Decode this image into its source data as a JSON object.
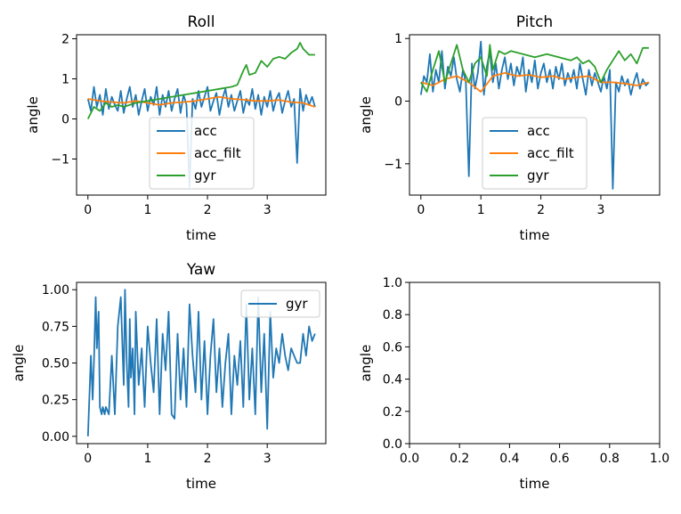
{
  "colors": {
    "acc": "#1f77b4",
    "acc_filt": "#ff7f0e",
    "gyr": "#2ca02c",
    "yaw_gyr": "#1f77b4"
  },
  "chart_data": [
    {
      "type": "line",
      "title": "Roll",
      "xlabel": "time",
      "ylabel": "angle",
      "xlim": [
        -0.19,
        3.98
      ],
      "ylim": [
        -1.9,
        2.1
      ],
      "xticks": [
        0,
        1,
        2,
        3
      ],
      "yticks": [
        -1,
        0,
        1,
        2
      ],
      "xtick_labels": [
        "0",
        "1",
        "2",
        "3"
      ],
      "ytick_labels": [
        "−1",
        "0",
        "1",
        "2"
      ],
      "legend": {
        "position": "lower center",
        "entries": [
          "acc",
          "acc_filt",
          "gyr"
        ]
      },
      "series": [
        {
          "name": "acc",
          "color": "acc",
          "x": [
            0.0,
            0.05,
            0.1,
            0.15,
            0.2,
            0.25,
            0.3,
            0.35,
            0.4,
            0.45,
            0.5,
            0.55,
            0.6,
            0.65,
            0.7,
            0.75,
            0.8,
            0.85,
            0.9,
            0.95,
            1.0,
            1.05,
            1.1,
            1.15,
            1.2,
            1.25,
            1.3,
            1.35,
            1.4,
            1.45,
            1.5,
            1.55,
            1.6,
            1.65,
            1.7,
            1.75,
            1.8,
            1.85,
            1.9,
            1.95,
            2.0,
            2.05,
            2.1,
            2.15,
            2.2,
            2.25,
            2.3,
            2.35,
            2.4,
            2.45,
            2.5,
            2.55,
            2.6,
            2.65,
            2.7,
            2.75,
            2.8,
            2.85,
            2.9,
            2.95,
            3.0,
            3.05,
            3.1,
            3.15,
            3.2,
            3.25,
            3.3,
            3.35,
            3.4,
            3.45,
            3.5,
            3.55,
            3.6,
            3.65,
            3.7,
            3.75,
            3.8
          ],
          "y": [
            0.5,
            0.2,
            0.8,
            0.3,
            0.6,
            0.1,
            0.75,
            0.25,
            0.55,
            0.35,
            0.2,
            0.7,
            0.15,
            0.5,
            0.8,
            0.3,
            0.6,
            0.1,
            0.45,
            0.75,
            0.2,
            0.55,
            0.35,
            0.8,
            0.1,
            0.6,
            0.3,
            0.7,
            0.2,
            0.5,
            0.75,
            0.15,
            0.6,
            0.35,
            -1.7,
            0.5,
            0.25,
            0.7,
            0.3,
            0.55,
            0.8,
            0.2,
            0.45,
            0.65,
            0.1,
            0.5,
            0.75,
            0.3,
            0.6,
            0.2,
            0.45,
            0.7,
            0.15,
            0.5,
            0.35,
            0.75,
            0.25,
            0.6,
            0.1,
            0.55,
            0.3,
            0.7,
            0.2,
            0.5,
            0.65,
            0.15,
            0.45,
            0.7,
            0.3,
            0.5,
            -1.1,
            0.75,
            0.2,
            0.6,
            0.35,
            0.55,
            0.3
          ]
        },
        {
          "name": "acc_filt",
          "color": "acc_filt",
          "x": [
            0.0,
            0.2,
            0.4,
            0.6,
            0.8,
            1.0,
            1.2,
            1.4,
            1.6,
            1.8,
            2.0,
            2.2,
            2.4,
            2.6,
            2.8,
            3.0,
            3.2,
            3.4,
            3.6,
            3.8
          ],
          "y": [
            0.5,
            0.45,
            0.42,
            0.4,
            0.45,
            0.4,
            0.35,
            0.4,
            0.42,
            0.45,
            0.5,
            0.55,
            0.5,
            0.48,
            0.45,
            0.45,
            0.47,
            0.42,
            0.4,
            0.3
          ]
        },
        {
          "name": "gyr",
          "color": "gyr",
          "x": [
            0.0,
            0.1,
            0.2,
            0.3,
            0.4,
            0.5,
            0.6,
            0.8,
            1.0,
            1.2,
            1.4,
            1.6,
            1.8,
            2.0,
            2.2,
            2.4,
            2.5,
            2.6,
            2.65,
            2.7,
            2.8,
            2.9,
            3.0,
            3.1,
            3.2,
            3.3,
            3.4,
            3.5,
            3.55,
            3.6,
            3.7,
            3.8
          ],
          "y": [
            0.0,
            0.3,
            0.2,
            0.4,
            0.3,
            0.35,
            0.3,
            0.4,
            0.45,
            0.5,
            0.55,
            0.6,
            0.65,
            0.7,
            0.75,
            0.8,
            0.85,
            1.2,
            1.35,
            1.1,
            1.15,
            1.45,
            1.3,
            1.5,
            1.55,
            1.5,
            1.65,
            1.75,
            1.9,
            1.75,
            1.6,
            1.6
          ]
        }
      ]
    },
    {
      "type": "line",
      "title": "Pitch",
      "xlabel": "time",
      "ylabel": "angle",
      "xlim": [
        -0.19,
        3.98
      ],
      "ylim": [
        -1.5,
        1.06
      ],
      "xticks": [
        0,
        1,
        2,
        3
      ],
      "yticks": [
        -1,
        0,
        1
      ],
      "xtick_labels": [
        "0",
        "1",
        "2",
        "3"
      ],
      "ytick_labels": [
        "−1",
        "0",
        "1"
      ],
      "legend": {
        "position": "lower right",
        "entries": [
          "acc",
          "acc_filt",
          "gyr"
        ]
      },
      "series": [
        {
          "name": "acc",
          "color": "acc",
          "x": [
            0.0,
            0.05,
            0.1,
            0.15,
            0.2,
            0.25,
            0.3,
            0.35,
            0.4,
            0.45,
            0.5,
            0.55,
            0.6,
            0.65,
            0.7,
            0.75,
            0.8,
            0.85,
            0.9,
            0.95,
            1.0,
            1.05,
            1.1,
            1.15,
            1.2,
            1.25,
            1.3,
            1.35,
            1.4,
            1.45,
            1.5,
            1.55,
            1.6,
            1.65,
            1.7,
            1.75,
            1.8,
            1.85,
            1.9,
            1.95,
            2.0,
            2.05,
            2.1,
            2.15,
            2.2,
            2.25,
            2.3,
            2.35,
            2.4,
            2.45,
            2.5,
            2.55,
            2.6,
            2.65,
            2.7,
            2.75,
            2.8,
            2.85,
            2.9,
            2.95,
            3.0,
            3.05,
            3.1,
            3.15,
            3.2,
            3.25,
            3.3,
            3.35,
            3.4,
            3.45,
            3.5,
            3.55,
            3.6,
            3.65,
            3.7,
            3.75,
            3.8
          ],
          "y": [
            0.1,
            0.4,
            0.3,
            0.75,
            0.15,
            0.5,
            0.3,
            0.8,
            0.2,
            0.55,
            0.4,
            0.7,
            0.35,
            0.15,
            0.5,
            0.3,
            -1.2,
            0.6,
            0.2,
            0.45,
            0.95,
            0.1,
            0.55,
            0.8,
            0.3,
            0.6,
            0.2,
            0.5,
            0.7,
            0.35,
            0.6,
            0.25,
            0.55,
            0.4,
            0.7,
            0.15,
            0.5,
            0.3,
            0.65,
            0.2,
            0.45,
            0.6,
            0.3,
            0.5,
            0.2,
            0.55,
            0.35,
            0.6,
            0.25,
            0.45,
            0.3,
            0.5,
            0.2,
            0.6,
            0.35,
            0.1,
            0.5,
            0.25,
            0.45,
            0.3,
            0.15,
            0.4,
            0.2,
            0.5,
            -1.4,
            0.3,
            0.15,
            0.4,
            0.25,
            0.35,
            0.1,
            0.3,
            0.45,
            0.2,
            0.35,
            0.25,
            0.3
          ]
        },
        {
          "name": "acc_filt",
          "color": "acc_filt",
          "x": [
            0.0,
            0.2,
            0.4,
            0.6,
            0.8,
            1.0,
            1.2,
            1.4,
            1.6,
            1.8,
            2.0,
            2.2,
            2.4,
            2.6,
            2.8,
            3.0,
            3.2,
            3.4,
            3.6,
            3.8
          ],
          "y": [
            0.3,
            0.25,
            0.35,
            0.4,
            0.3,
            0.15,
            0.4,
            0.45,
            0.4,
            0.42,
            0.38,
            0.4,
            0.35,
            0.38,
            0.4,
            0.3,
            0.3,
            0.28,
            0.25,
            0.3
          ]
        },
        {
          "name": "gyr",
          "color": "gyr",
          "x": [
            0.0,
            0.1,
            0.2,
            0.3,
            0.4,
            0.5,
            0.6,
            0.7,
            0.8,
            0.9,
            1.0,
            1.1,
            1.15,
            1.2,
            1.3,
            1.4,
            1.5,
            1.7,
            1.9,
            2.1,
            2.3,
            2.5,
            2.6,
            2.7,
            2.8,
            2.9,
            3.0,
            3.1,
            3.2,
            3.3,
            3.4,
            3.5,
            3.6,
            3.7,
            3.8
          ],
          "y": [
            0.3,
            0.15,
            0.5,
            0.8,
            0.3,
            0.6,
            0.9,
            0.5,
            0.3,
            0.6,
            0.7,
            0.4,
            0.9,
            0.5,
            0.8,
            0.75,
            0.8,
            0.75,
            0.7,
            0.75,
            0.7,
            0.65,
            0.7,
            0.6,
            0.65,
            0.55,
            0.3,
            0.5,
            0.65,
            0.8,
            0.65,
            0.75,
            0.6,
            0.85,
            0.85
          ]
        }
      ]
    },
    {
      "type": "line",
      "title": "Yaw",
      "xlabel": "time",
      "ylabel": "angle",
      "xlim": [
        -0.19,
        3.98
      ],
      "ylim": [
        -0.05,
        1.05
      ],
      "xticks": [
        0,
        1,
        2,
        3
      ],
      "yticks": [
        0.0,
        0.25,
        0.5,
        0.75,
        1.0
      ],
      "xtick_labels": [
        "0",
        "1",
        "2",
        "3"
      ],
      "ytick_labels": [
        "0.00",
        "0.25",
        "0.50",
        "0.75",
        "1.00"
      ],
      "legend": {
        "position": "upper right",
        "entries": [
          "gyr"
        ]
      },
      "series": [
        {
          "name": "gyr",
          "color": "yaw_gyr",
          "x": [
            0.0,
            0.05,
            0.08,
            0.1,
            0.13,
            0.15,
            0.18,
            0.2,
            0.23,
            0.25,
            0.28,
            0.3,
            0.35,
            0.4,
            0.45,
            0.5,
            0.55,
            0.6,
            0.62,
            0.65,
            0.68,
            0.7,
            0.72,
            0.75,
            0.78,
            0.8,
            0.85,
            0.9,
            0.95,
            1.0,
            1.05,
            1.1,
            1.15,
            1.2,
            1.25,
            1.3,
            1.35,
            1.4,
            1.45,
            1.5,
            1.55,
            1.6,
            1.65,
            1.7,
            1.75,
            1.8,
            1.85,
            1.9,
            1.95,
            2.0,
            2.05,
            2.1,
            2.15,
            2.2,
            2.25,
            2.3,
            2.35,
            2.4,
            2.45,
            2.5,
            2.55,
            2.6,
            2.65,
            2.7,
            2.75,
            2.8,
            2.85,
            2.9,
            2.95,
            3.0,
            3.05,
            3.1,
            3.15,
            3.2,
            3.25,
            3.3,
            3.35,
            3.4,
            3.45,
            3.5,
            3.55,
            3.6,
            3.65,
            3.7,
            3.75,
            3.8
          ],
          "y": [
            0.0,
            0.55,
            0.25,
            0.5,
            0.95,
            0.6,
            0.85,
            0.2,
            0.15,
            0.2,
            0.15,
            0.2,
            0.15,
            0.55,
            0.15,
            0.75,
            0.95,
            0.35,
            1.0,
            0.5,
            0.2,
            0.8,
            0.4,
            0.6,
            0.15,
            0.85,
            0.35,
            0.6,
            0.2,
            0.75,
            0.5,
            0.3,
            0.8,
            0.15,
            0.7,
            0.45,
            0.85,
            0.15,
            0.12,
            0.7,
            0.25,
            0.6,
            0.2,
            0.9,
            0.55,
            0.3,
            0.85,
            0.25,
            0.65,
            0.15,
            0.55,
            0.8,
            0.3,
            0.6,
            0.2,
            0.5,
            0.7,
            0.15,
            0.55,
            0.35,
            0.65,
            0.2,
            0.9,
            0.25,
            0.6,
            0.15,
            0.95,
            0.3,
            0.7,
            0.05,
            0.85,
            0.4,
            0.6,
            0.5,
            0.7,
            0.55,
            0.45,
            0.6,
            0.55,
            0.5,
            0.5,
            0.7,
            0.55,
            0.75,
            0.65,
            0.7
          ]
        }
      ]
    },
    {
      "type": "line",
      "title": "",
      "xlabel": "time",
      "ylabel": "angle",
      "xlim": [
        0.0,
        1.0
      ],
      "ylim": [
        0.0,
        1.0
      ],
      "xticks": [
        0.0,
        0.2,
        0.4,
        0.6,
        0.8,
        1.0
      ],
      "yticks": [
        0.0,
        0.2,
        0.4,
        0.6,
        0.8,
        1.0
      ],
      "xtick_labels": [
        "0.0",
        "0.2",
        "0.4",
        "0.6",
        "0.8",
        "1.0"
      ],
      "ytick_labels": [
        "0.0",
        "0.2",
        "0.4",
        "0.6",
        "0.8",
        "1.0"
      ],
      "series": []
    }
  ]
}
